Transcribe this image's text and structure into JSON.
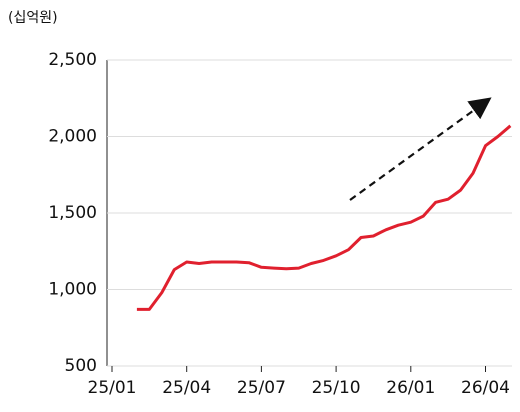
{
  "chart_data": {
    "type": "line",
    "unit_label": "(십억원)",
    "categories": [
      "25/01",
      null,
      null,
      null,
      null,
      null,
      "25/04",
      null,
      null,
      null,
      null,
      null,
      "25/07",
      null,
      null,
      null,
      null,
      null,
      "25/10",
      null,
      null,
      null,
      null,
      null,
      "26/01",
      null,
      null,
      null,
      null,
      null,
      "26/04",
      null,
      null
    ],
    "values": [
      null,
      null,
      870,
      870,
      980,
      1130,
      1180,
      1170,
      1180,
      1180,
      1180,
      1175,
      1145,
      1140,
      1135,
      1140,
      1170,
      1190,
      1220,
      1260,
      1340,
      1350,
      1390,
      1420,
      1440,
      1480,
      1570,
      1590,
      1650,
      1760,
      1940,
      2000,
      2070
    ],
    "color": "#e0202e",
    "ylim": [
      500,
      2500
    ],
    "yticks": [
      500,
      {
        "value": 1000,
        "label": "1,000"
      },
      {
        "value": 1500,
        "label": "1,500"
      },
      {
        "value": 2000,
        "label": "2,000"
      },
      {
        "value": 2500,
        "label": "2,500"
      }
    ],
    "grid": true
  }
}
